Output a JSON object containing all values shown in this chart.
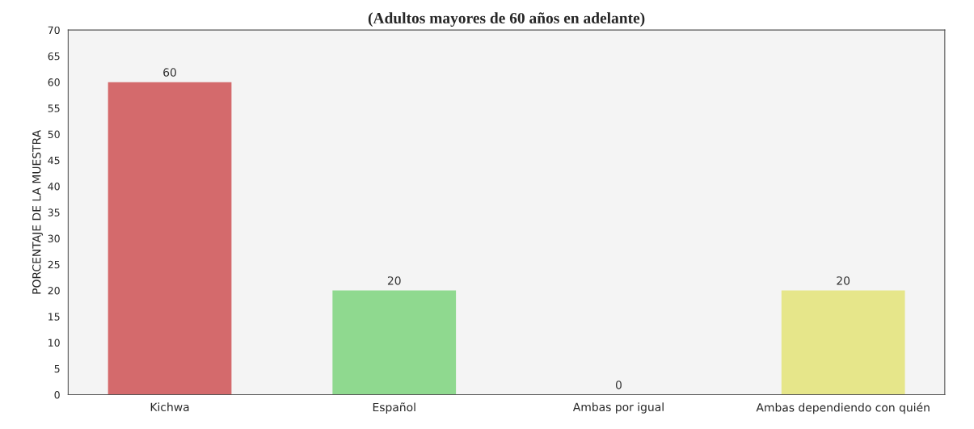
{
  "chart_data": {
    "type": "bar",
    "title": "(Adultos mayores de 60 años en adelante)",
    "ylabel": "PORCENTAJE DE LA MUESTRA",
    "categories": [
      "Kichwa",
      "Español",
      "Ambas por igual",
      "Ambas dependiendo con quién"
    ],
    "values": [
      60,
      20,
      0,
      20
    ],
    "colors": [
      "#d46a6c",
      "#8fd98f",
      "#5a5af0",
      "#e6e68a"
    ],
    "ylim": [
      0,
      70
    ],
    "yticks": [
      0,
      5,
      10,
      15,
      20,
      25,
      30,
      35,
      40,
      45,
      50,
      55,
      60,
      65,
      70
    ],
    "data_labels": true,
    "grid": false
  }
}
